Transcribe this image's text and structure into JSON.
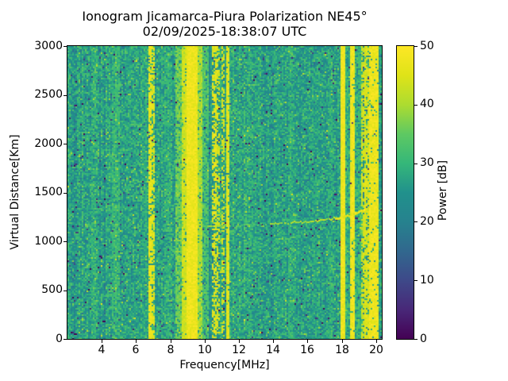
{
  "chart_data": {
    "type": "heatmap",
    "title": "Ionogram Jicamarca-Piura Polarization NE45°",
    "subtitle": "02/09/2025-18:38:07 UTC",
    "xlabel": "Frequency[MHz]",
    "ylabel": "Virtual Distance[Km]",
    "colorbar_label": "Power [dB]",
    "xlim": [
      2.0,
      20.33
    ],
    "ylim": [
      0,
      3000
    ],
    "power_range_db": [
      0,
      50
    ],
    "xticks": [
      4,
      6,
      8,
      10,
      12,
      14,
      16,
      18,
      20
    ],
    "yticks": [
      0,
      500,
      1000,
      1500,
      2000,
      2500,
      3000
    ],
    "colorbar_ticks": [
      0,
      10,
      20,
      30,
      40,
      50
    ],
    "grid": false,
    "legend": false,
    "colormap": "viridis",
    "colormap_stops": [
      "#440154",
      "#482878",
      "#3e4989",
      "#31688e",
      "#26828e",
      "#21918c",
      "#35b779",
      "#5ec962",
      "#addc30",
      "#dfe318",
      "#fde725"
    ],
    "background_noise_db": {
      "mean": 27,
      "std": 4
    },
    "rfi_stripes": [
      {
        "f0": 3.45,
        "f1": 3.62,
        "power": 31,
        "duty": 0.45
      },
      {
        "f0": 4.68,
        "f1": 5.02,
        "power": 33,
        "duty": 0.55
      },
      {
        "f0": 5.55,
        "f1": 5.65,
        "power": 30,
        "duty": 0.35
      },
      {
        "f0": 6.42,
        "f1": 6.62,
        "power": 31,
        "duty": 0.45
      },
      {
        "f0": 6.8,
        "f1": 6.88,
        "power": 49,
        "duty": 0.85
      },
      {
        "f0": 6.95,
        "f1": 7.03,
        "power": 48,
        "duty": 0.65
      },
      {
        "f0": 7.72,
        "f1": 7.95,
        "power": 32,
        "duty": 0.5
      },
      {
        "f0": 8.3,
        "f1": 8.7,
        "power": 39,
        "duty": 0.7
      },
      {
        "f0": 8.7,
        "f1": 9.0,
        "power": 46,
        "duty": 0.9
      },
      {
        "f0": 9.0,
        "f1": 9.55,
        "power": 50,
        "duty": 1.0
      },
      {
        "f0": 9.55,
        "f1": 9.8,
        "power": 43,
        "duty": 0.85
      },
      {
        "f0": 9.8,
        "f1": 10.15,
        "power": 36,
        "duty": 0.65
      },
      {
        "f0": 10.5,
        "f1": 10.63,
        "power": 48,
        "duty": 0.55
      },
      {
        "f0": 10.68,
        "f1": 10.8,
        "power": 47,
        "duty": 0.5
      },
      {
        "f0": 11.0,
        "f1": 11.13,
        "power": 47,
        "duty": 0.5
      },
      {
        "f0": 11.32,
        "f1": 11.42,
        "power": 48,
        "duty": 0.9
      },
      {
        "f0": 12.05,
        "f1": 12.18,
        "power": 31,
        "duty": 0.4
      },
      {
        "f0": 12.55,
        "f1": 12.65,
        "power": 33,
        "duty": 0.3
      },
      {
        "f0": 13.0,
        "f1": 13.12,
        "power": 31,
        "duty": 0.4
      },
      {
        "f0": 14.0,
        "f1": 14.12,
        "power": 30,
        "duty": 0.35
      },
      {
        "f0": 14.95,
        "f1": 15.12,
        "power": 32,
        "duty": 0.5
      },
      {
        "f0": 16.3,
        "f1": 16.46,
        "power": 31,
        "duty": 0.4
      },
      {
        "f0": 17.2,
        "f1": 17.42,
        "power": 32,
        "duty": 0.45
      },
      {
        "f0": 17.95,
        "f1": 18.13,
        "power": 50,
        "duty": 1.0
      },
      {
        "f0": 18.25,
        "f1": 18.36,
        "power": 34,
        "duty": 0.5
      },
      {
        "f0": 18.55,
        "f1": 18.7,
        "power": 50,
        "duty": 0.95
      },
      {
        "f0": 18.7,
        "f1": 19.15,
        "power": 35,
        "duty": 0.4
      },
      {
        "f0": 19.15,
        "f1": 19.32,
        "power": 46,
        "duty": 0.7
      },
      {
        "f0": 19.4,
        "f1": 19.52,
        "power": 47,
        "duty": 0.75
      },
      {
        "f0": 19.6,
        "f1": 20.08,
        "power": 50,
        "duty": 0.92
      }
    ],
    "echo_trace_segments": [
      {
        "f0": 10.05,
        "f1": 11.5,
        "km0": 1150,
        "km1": 1162,
        "power": 42,
        "duty": 0.65
      },
      {
        "f0": 11.5,
        "f1": 13.8,
        "km0": 1162,
        "km1": 1175,
        "power": 36,
        "duty": 0.28
      },
      {
        "f0": 13.8,
        "f1": 16.2,
        "km0": 1175,
        "km1": 1205,
        "power": 42,
        "duty": 0.75
      },
      {
        "f0": 16.2,
        "f1": 17.6,
        "km0": 1205,
        "km1": 1235,
        "power": 44,
        "duty": 0.85
      },
      {
        "f0": 17.6,
        "f1": 18.75,
        "km0": 1235,
        "km1": 1285,
        "power": 48,
        "duty": 1.0
      },
      {
        "f0": 18.75,
        "f1": 19.35,
        "km0": 1285,
        "km1": 1335,
        "power": 50,
        "duty": 1.0
      },
      {
        "f0": 10.2,
        "f1": 11.6,
        "km0": 1740,
        "km1": 1762,
        "power": 33,
        "duty": 0.35
      }
    ]
  }
}
